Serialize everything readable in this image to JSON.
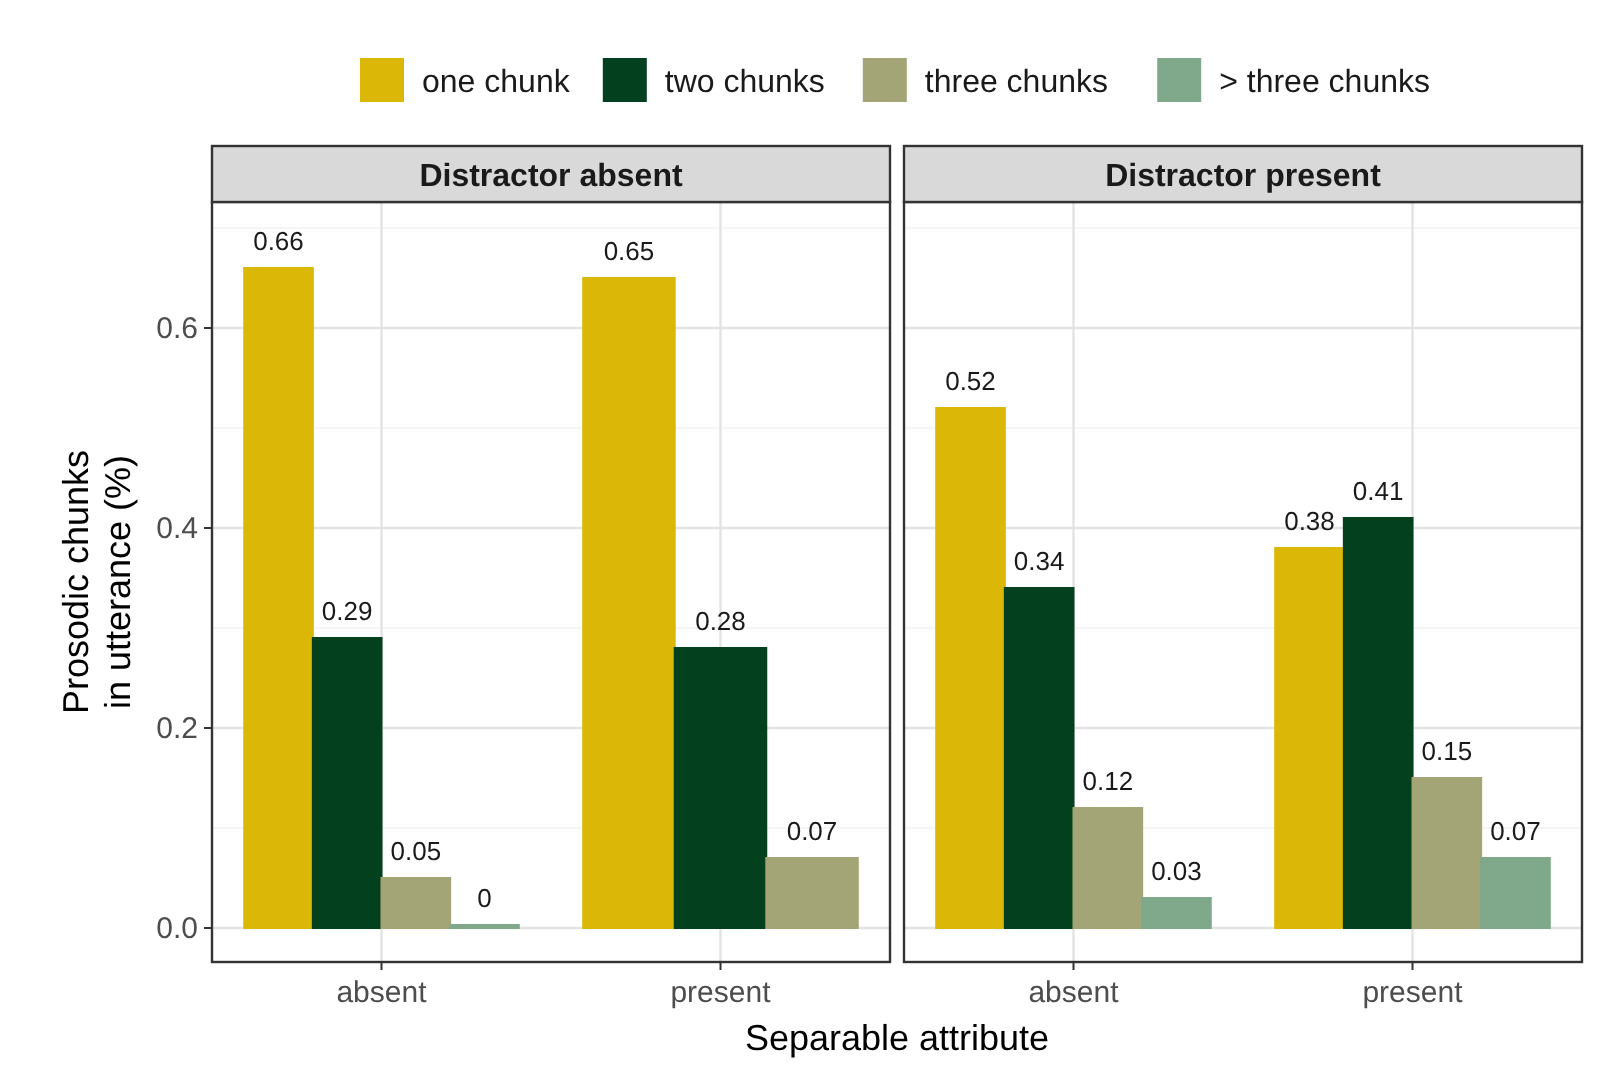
{
  "chart_data": [
    {
      "type": "bar",
      "title": "Distractor absent",
      "xlabel": "Separable attribute",
      "ylabel": "Prosodic chunks in utterance (%)",
      "categories": [
        "absent",
        "present"
      ],
      "ylim": [
        -0.034,
        0.726
      ],
      "yticks": [
        {
          "value": 0,
          "label": "0.0"
        },
        0.2,
        0.4,
        0.6
      ],
      "grid": true,
      "legend": "top",
      "series": [
        {
          "name": "one chunk",
          "color": "#dbb807",
          "values": [
            0.66,
            0.65
          ],
          "value_labels": [
            "0.66",
            "0.65"
          ]
        },
        {
          "name": "two chunks",
          "color": "#02401e",
          "values": [
            0.29,
            0.28
          ],
          "value_labels": [
            "0.29",
            "0.28"
          ]
        },
        {
          "name": "three chunks",
          "color": "#a3a577",
          "values": [
            0.05,
            0.07
          ],
          "value_labels": [
            "0.05",
            "0.07"
          ]
        },
        {
          "name": "> three chunks",
          "color": "#7fa98a",
          "values": [
            0.003,
            null
          ],
          "value_labels": [
            "0",
            null
          ]
        }
      ]
    },
    {
      "type": "bar",
      "title": "Distractor present",
      "categories": [
        "absent",
        "present"
      ],
      "ylim": [
        -0.034,
        0.726
      ],
      "yticks": [
        {
          "value": 0,
          "label": null
        },
        {
          "value": 0.2,
          "label": null
        },
        {
          "value": 0.4,
          "label": null
        },
        {
          "value": 0.6,
          "label": null
        }
      ],
      "grid": true,
      "tick_labels": "x",
      "data_labels": true,
      "series": [
        {
          "color": "#dbb807",
          "values": [
            0.52,
            0.38
          ]
        },
        {
          "color": "#02401e",
          "values": [
            0.34,
            0.41
          ]
        },
        {
          "color": "#a3a577",
          "values": [
            0.12,
            0.15
          ]
        },
        {
          "color": "#7fa98a",
          "values": [
            0.03,
            0.07
          ]
        }
      ]
    }
  ]
}
